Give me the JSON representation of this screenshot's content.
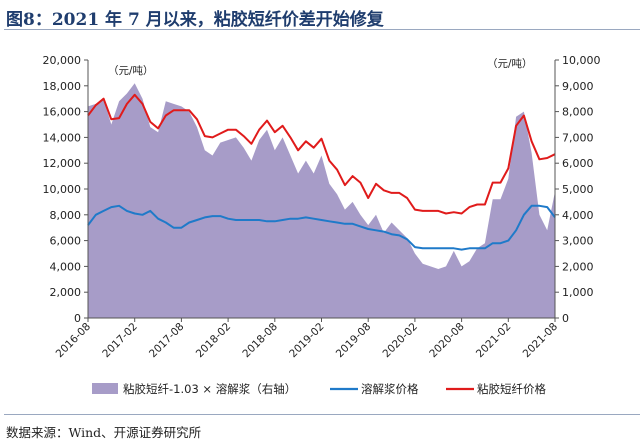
{
  "figure": {
    "title": "图8：2021 年 7 月以来，粘胶短纤价差开始修复",
    "source": "数据来源：Wind、开源证券研究所"
  },
  "chart_data": {
    "type": "line",
    "title": "",
    "ylabel_left_unit": "（元/吨）",
    "ylabel_right_unit": "（元/吨）",
    "ylim_left": [
      0,
      20000
    ],
    "yticks_left": [
      0,
      2000,
      4000,
      6000,
      8000,
      10000,
      12000,
      14000,
      16000,
      18000,
      20000
    ],
    "ytick_labels_left": [
      "0",
      "2,000",
      "4,000",
      "6,000",
      "8,000",
      "10,000",
      "12,000",
      "14,000",
      "16,000",
      "18,000",
      "20,000"
    ],
    "ylim_right": [
      0,
      10000
    ],
    "yticks_right": [
      0,
      1000,
      2000,
      3000,
      4000,
      5000,
      6000,
      7000,
      8000,
      9000,
      10000
    ],
    "ytick_labels_right": [
      "0",
      "1,000",
      "2,000",
      "3,000",
      "4,000",
      "5,000",
      "6,000",
      "7,000",
      "8,000",
      "9,000",
      "10,000"
    ],
    "xticks": [
      "2016-08",
      "2017-02",
      "2017-08",
      "2018-02",
      "2018-08",
      "2019-02",
      "2019-08",
      "2020-02",
      "2020-08",
      "2021-02",
      "2021-08"
    ],
    "x": [
      "2016-08",
      "2016-09",
      "2016-10",
      "2016-11",
      "2016-12",
      "2017-01",
      "2017-02",
      "2017-03",
      "2017-04",
      "2017-05",
      "2017-06",
      "2017-07",
      "2017-08",
      "2017-09",
      "2017-10",
      "2017-11",
      "2017-12",
      "2018-01",
      "2018-02",
      "2018-03",
      "2018-04",
      "2018-05",
      "2018-06",
      "2018-07",
      "2018-08",
      "2018-09",
      "2018-10",
      "2018-11",
      "2018-12",
      "2019-01",
      "2019-02",
      "2019-03",
      "2019-04",
      "2019-05",
      "2019-06",
      "2019-07",
      "2019-08",
      "2019-09",
      "2019-10",
      "2019-11",
      "2019-12",
      "2020-01",
      "2020-02",
      "2020-03",
      "2020-04",
      "2020-05",
      "2020-06",
      "2020-07",
      "2020-08",
      "2020-09",
      "2020-10",
      "2020-11",
      "2020-12",
      "2021-01",
      "2021-02",
      "2021-03",
      "2021-04",
      "2021-05",
      "2021-06",
      "2021-07",
      "2021-08"
    ],
    "series": [
      {
        "name": "粘胶短纤-1.03 × 溶解浆（右轴）",
        "type": "area",
        "axis": "right",
        "color": "#a79cc8",
        "values": [
          8200,
          8300,
          8500,
          7500,
          8400,
          8700,
          9100,
          8500,
          7400,
          7200,
          8400,
          8300,
          8200,
          8000,
          7400,
          6500,
          6300,
          6800,
          6900,
          7000,
          6600,
          6100,
          6900,
          7300,
          6500,
          7000,
          6300,
          5600,
          6100,
          5600,
          6300,
          5200,
          4800,
          4200,
          4500,
          4000,
          3600,
          4000,
          3300,
          3700,
          3400,
          3100,
          2500,
          2100,
          2000,
          1900,
          2000,
          2600,
          2000,
          2200,
          2700,
          2900,
          4600,
          4600,
          5400,
          7800,
          8000,
          6400,
          4000,
          3400,
          4900
        ]
      },
      {
        "name": "溶解浆价格",
        "type": "line",
        "axis": "left",
        "color": "#1f7ac9",
        "values": [
          7200,
          8000,
          8300,
          8600,
          8700,
          8300,
          8100,
          8000,
          8300,
          7700,
          7400,
          7000,
          7000,
          7400,
          7600,
          7800,
          7900,
          7900,
          7700,
          7600,
          7600,
          7600,
          7600,
          7500,
          7500,
          7600,
          7700,
          7700,
          7800,
          7700,
          7600,
          7500,
          7400,
          7300,
          7300,
          7100,
          6900,
          6800,
          6700,
          6500,
          6400,
          6100,
          5500,
          5400,
          5400,
          5400,
          5400,
          5400,
          5300,
          5400,
          5400,
          5400,
          5800,
          5800,
          6000,
          6800,
          8000,
          8700,
          8700,
          8600,
          7800
        ]
      },
      {
        "name": "粘胶短纤价格",
        "type": "line",
        "axis": "left",
        "color": "#e01b1b",
        "values": [
          15700,
          16500,
          17000,
          15400,
          15500,
          16600,
          17300,
          16600,
          15200,
          14700,
          15700,
          16100,
          16100,
          16100,
          15400,
          14100,
          14000,
          14300,
          14600,
          14600,
          14100,
          13500,
          14600,
          15300,
          14400,
          14900,
          14000,
          13000,
          13700,
          13200,
          13900,
          12200,
          11500,
          10300,
          11000,
          10500,
          9300,
          10400,
          9900,
          9700,
          9700,
          9300,
          8400,
          8300,
          8300,
          8300,
          8100,
          8200,
          8100,
          8600,
          8800,
          8800,
          10500,
          10500,
          11600,
          14900,
          15700,
          13700,
          12300,
          12400,
          12700
        ]
      }
    ],
    "legend_position": "bottom",
    "grid": false
  }
}
